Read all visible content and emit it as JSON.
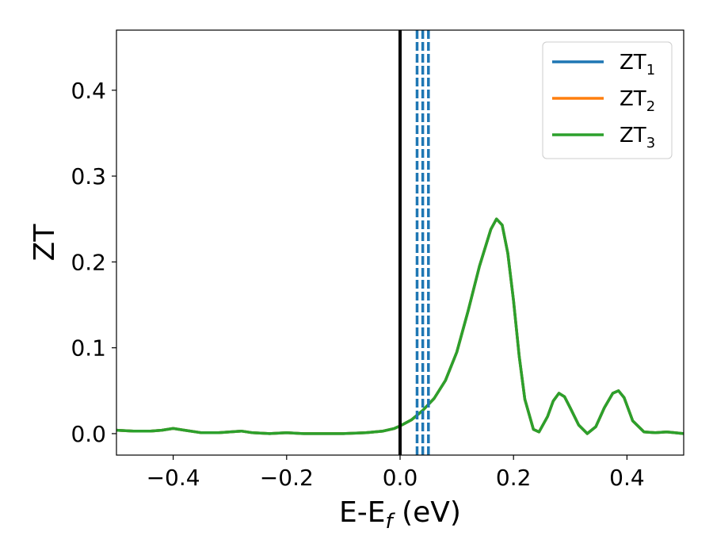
{
  "chart_data": {
    "type": "line",
    "title": "",
    "xlabel": "E-E",
    "xlabel_sub": "f",
    "xlabel_unit": " (eV)",
    "ylabel": "ZT",
    "xlim": [
      -0.5,
      0.5
    ],
    "ylim": [
      -0.025,
      0.47
    ],
    "x_ticks": [
      -0.4,
      -0.2,
      0.0,
      0.2,
      0.4
    ],
    "x_tick_labels": [
      "−0.4",
      "−0.2",
      "0.0",
      "0.2",
      "0.4"
    ],
    "y_ticks": [
      0.0,
      0.1,
      0.2,
      0.3,
      0.4
    ],
    "y_tick_labels": [
      "0.0",
      "0.1",
      "0.2",
      "0.3",
      "0.4"
    ],
    "grid": false,
    "legend_position": "top-right",
    "x": [
      -0.5,
      -0.47,
      -0.44,
      -0.42,
      -0.4,
      -0.38,
      -0.35,
      -0.32,
      -0.3,
      -0.28,
      -0.26,
      -0.23,
      -0.2,
      -0.17,
      -0.14,
      -0.1,
      -0.06,
      -0.03,
      -0.01,
      0.0,
      0.02,
      0.04,
      0.06,
      0.08,
      0.1,
      0.12,
      0.14,
      0.16,
      0.17,
      0.18,
      0.19,
      0.2,
      0.21,
      0.22,
      0.235,
      0.245,
      0.26,
      0.27,
      0.28,
      0.29,
      0.3,
      0.315,
      0.33,
      0.345,
      0.36,
      0.375,
      0.385,
      0.395,
      0.41,
      0.43,
      0.45,
      0.47,
      0.5
    ],
    "series": [
      {
        "name": "ZT",
        "name_sub": "1",
        "color": "#1f77b4",
        "values": [
          0.004,
          0.003,
          0.003,
          0.004,
          0.006,
          0.004,
          0.001,
          0.001,
          0.002,
          0.003,
          0.001,
          0.0,
          0.001,
          0.0,
          0.0,
          0.0,
          0.001,
          0.003,
          0.006,
          0.009,
          0.016,
          0.027,
          0.041,
          0.062,
          0.095,
          0.143,
          0.195,
          0.238,
          0.25,
          0.243,
          0.21,
          0.155,
          0.09,
          0.04,
          0.005,
          0.002,
          0.02,
          0.038,
          0.047,
          0.043,
          0.03,
          0.01,
          0.0,
          0.008,
          0.03,
          0.047,
          0.05,
          0.042,
          0.015,
          0.002,
          0.001,
          0.002,
          0.0
        ]
      },
      {
        "name": "ZT",
        "name_sub": "2",
        "color": "#ff7f0e",
        "values": [
          0.004,
          0.003,
          0.003,
          0.004,
          0.006,
          0.004,
          0.001,
          0.001,
          0.002,
          0.003,
          0.001,
          0.0,
          0.001,
          0.0,
          0.0,
          0.0,
          0.001,
          0.003,
          0.006,
          0.009,
          0.016,
          0.027,
          0.041,
          0.062,
          0.095,
          0.143,
          0.195,
          0.238,
          0.25,
          0.243,
          0.21,
          0.155,
          0.09,
          0.04,
          0.005,
          0.002,
          0.02,
          0.038,
          0.047,
          0.043,
          0.03,
          0.01,
          0.0,
          0.008,
          0.03,
          0.047,
          0.05,
          0.042,
          0.015,
          0.002,
          0.001,
          0.002,
          0.0
        ]
      },
      {
        "name": "ZT",
        "name_sub": "3",
        "color": "#2ca02c",
        "values": [
          0.004,
          0.003,
          0.003,
          0.004,
          0.006,
          0.004,
          0.001,
          0.001,
          0.002,
          0.003,
          0.001,
          0.0,
          0.001,
          0.0,
          0.0,
          0.0,
          0.001,
          0.003,
          0.006,
          0.009,
          0.016,
          0.027,
          0.041,
          0.062,
          0.095,
          0.143,
          0.195,
          0.238,
          0.25,
          0.243,
          0.21,
          0.155,
          0.09,
          0.04,
          0.005,
          0.002,
          0.02,
          0.038,
          0.047,
          0.043,
          0.03,
          0.01,
          0.0,
          0.008,
          0.03,
          0.047,
          0.05,
          0.042,
          0.015,
          0.002,
          0.001,
          0.002,
          0.0
        ]
      }
    ],
    "vertical_lines": [
      {
        "x": 0.0,
        "style": "solid",
        "color": "#000000"
      },
      {
        "x": 0.03,
        "style": "dashed",
        "color": "#1f77b4"
      },
      {
        "x": 0.04,
        "style": "dashed",
        "color": "#1f77b4"
      },
      {
        "x": 0.05,
        "style": "dashed",
        "color": "#1f77b4"
      }
    ]
  }
}
